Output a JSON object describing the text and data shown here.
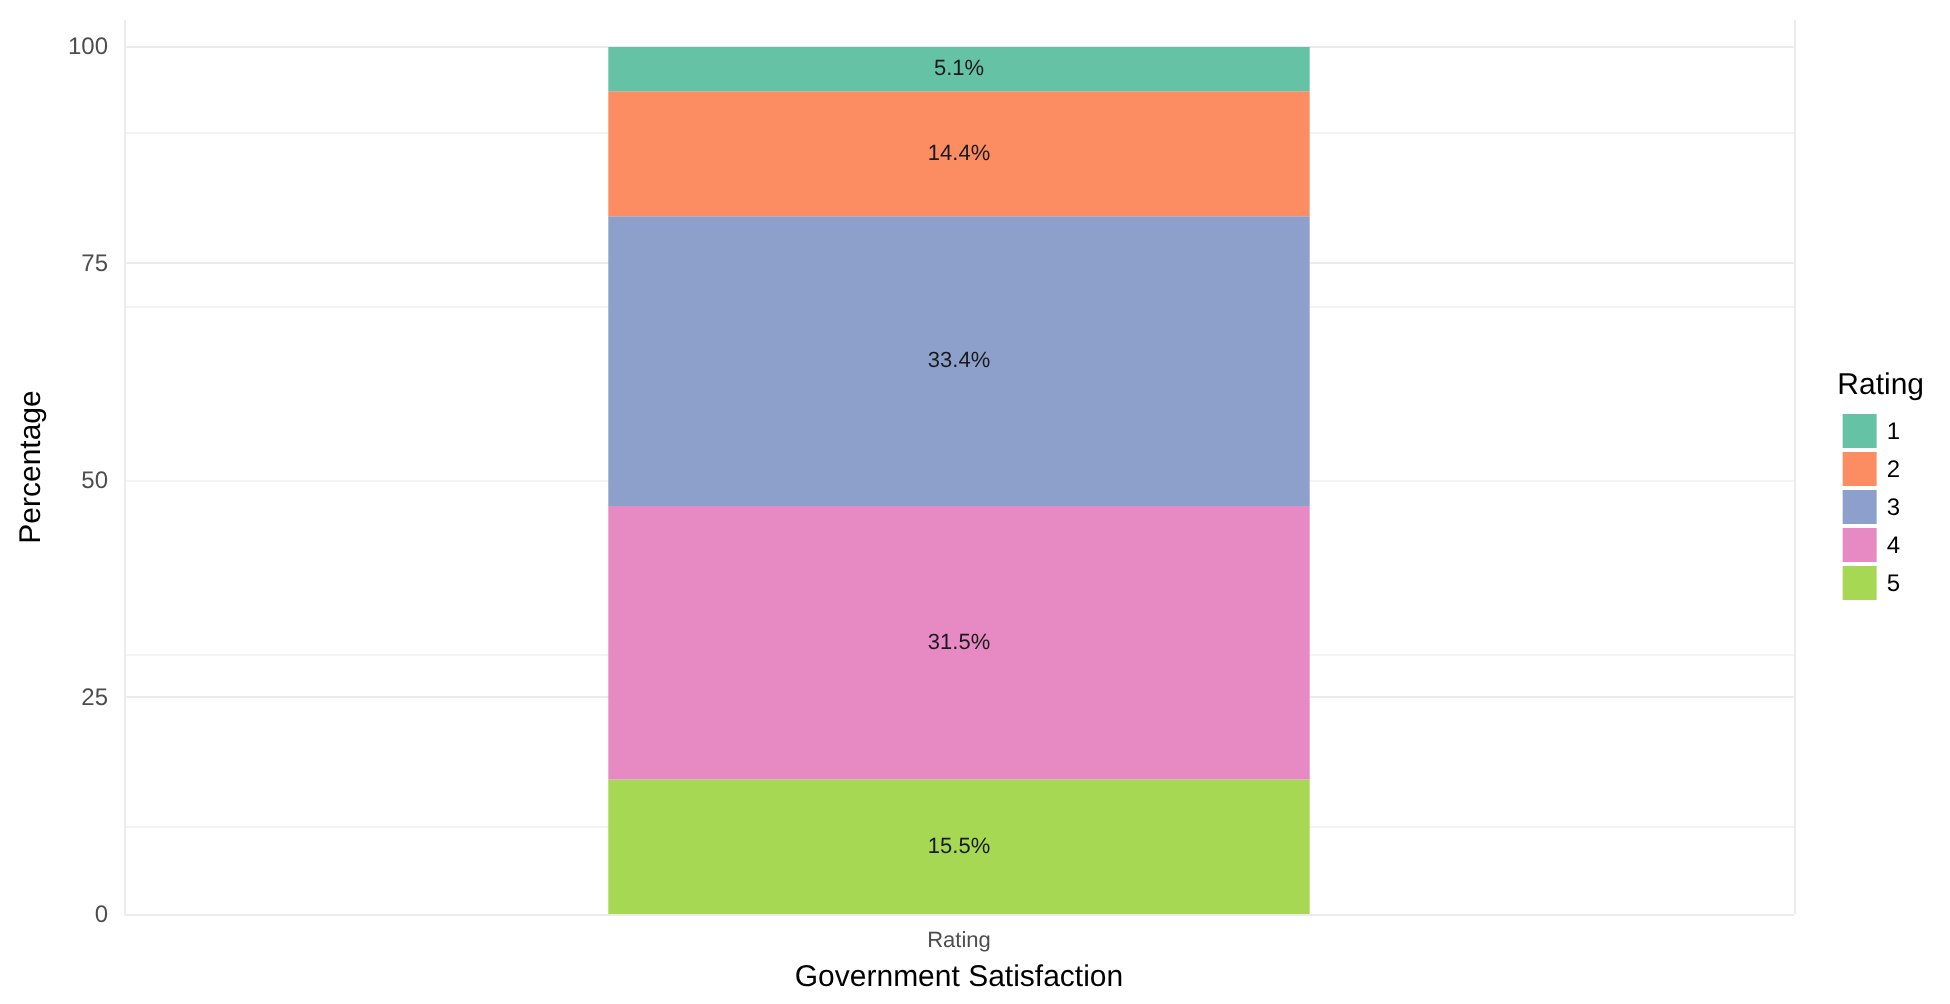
{
  "chart_data": {
    "type": "bar",
    "stacked": true,
    "xlabel": "Government Satisfaction",
    "ylabel": "Percentage",
    "legend_title": "Rating",
    "categories": [
      "Rating"
    ],
    "series": [
      {
        "name": "5",
        "color": "#a6d854",
        "values": [
          15.5
        ],
        "value_labels": [
          "15.5%"
        ]
      },
      {
        "name": "4",
        "color": "#e78ac3",
        "values": [
          31.5
        ],
        "value_labels": [
          "31.5%"
        ]
      },
      {
        "name": "3",
        "color": "#8da0cb",
        "values": [
          33.4
        ],
        "value_labels": [
          "33.4%"
        ]
      },
      {
        "name": "2",
        "color": "#fc8d62",
        "values": [
          14.4
        ],
        "value_labels": [
          "14.4%"
        ]
      },
      {
        "name": "1",
        "color": "#66c2a5",
        "values": [
          5.1
        ],
        "value_labels": [
          "5.1%"
        ]
      }
    ],
    "ylim": [
      0,
      100
    ],
    "yticks": [
      0,
      25,
      50,
      75,
      100
    ],
    "grid": true,
    "legend": "right"
  }
}
